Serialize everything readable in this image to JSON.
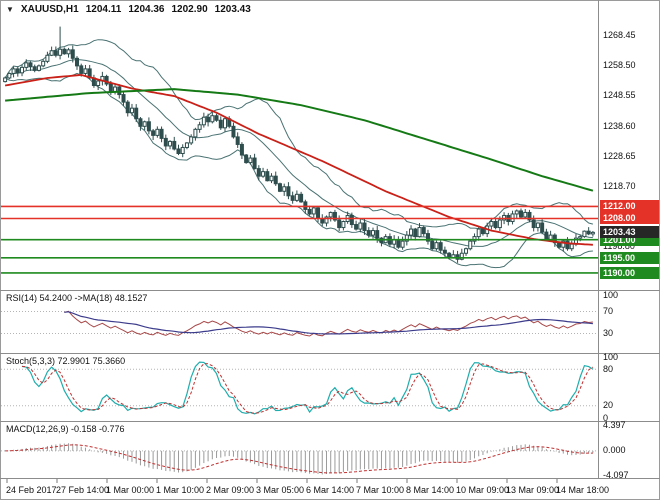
{
  "window": {
    "bg": "#ffffff",
    "border_color": "#9a9a9a"
  },
  "header": {
    "menu_icon": "chart-menu",
    "symbol_period": "XAUUSD,H1",
    "open": "1204.11",
    "high": "1204.36",
    "low": "1202.90",
    "close": "1203.43"
  },
  "chart_data": {
    "type": "candlestick",
    "symbol": "XAUUSD",
    "timeframe": "H1",
    "current_ohlc": {
      "open": 1204.11,
      "high": 1204.36,
      "low": 1202.9,
      "close": 1203.43
    },
    "y_range": [
      1185.0,
      1275.0
    ],
    "y_ticks": [
      {
        "label": "1268.45",
        "price": 1268.45
      },
      {
        "label": "1258.50",
        "price": 1258.5
      },
      {
        "label": "1248.55",
        "price": 1248.55
      },
      {
        "label": "1238.60",
        "price": 1238.6
      },
      {
        "label": "1228.65",
        "price": 1228.65
      },
      {
        "label": "1218.70",
        "price": 1218.7
      },
      {
        "label": "1198.80",
        "price": 1198.8
      }
    ],
    "levels": [
      {
        "label": "1212.00",
        "price": 1212.0,
        "kind": "resistance",
        "color": "#e53228",
        "line": true
      },
      {
        "label": "1208.00",
        "price": 1208.0,
        "kind": "resistance",
        "color": "#e53228",
        "line": true
      },
      {
        "label": "1203.43",
        "price": 1203.43,
        "kind": "current",
        "color": "#262626",
        "line": false
      },
      {
        "label": "1201.00",
        "price": 1201.0,
        "kind": "support",
        "color": "#1f8a1f",
        "line": true
      },
      {
        "label": "1195.00",
        "price": 1195.0,
        "kind": "support",
        "color": "#1f8a1f",
        "line": true
      },
      {
        "label": "1190.00",
        "price": 1190.0,
        "kind": "support",
        "color": "#1f8a1f",
        "line": true
      }
    ],
    "x_labels": [
      "24 Feb 2017",
      "27 Feb 14:00",
      "1 Mar 00:00",
      "1 Mar 10:00",
      "2 Mar 09:00",
      "3 Mar 05:00",
      "6 Mar 14:00",
      "7 Mar 10:00",
      "8 Mar 14:00",
      "10 Mar 09:00",
      "13 Mar 09:00",
      "14 Mar 18:00"
    ],
    "closes": [
      1254.5,
      1256.0,
      1257.5,
      1256.2,
      1258.0,
      1259.5,
      1258.2,
      1257.0,
      1258.5,
      1260.0,
      1262.0,
      1263.5,
      1262.0,
      1264.0,
      1262.5,
      1263.8,
      1261.0,
      1258.5,
      1256.0,
      1257.5,
      1254.5,
      1252.0,
      1253.5,
      1255.0,
      1252.5,
      1250.0,
      1251.5,
      1249.0,
      1246.5,
      1243.0,
      1244.5,
      1241.0,
      1238.5,
      1240.0,
      1237.0,
      1235.5,
      1237.5,
      1234.5,
      1232.0,
      1233.5,
      1231.0,
      1229.5,
      1231.5,
      1233.0,
      1235.0,
      1237.5,
      1239.0,
      1241.5,
      1240.0,
      1242.0,
      1240.5,
      1238.0,
      1241.0,
      1238.5,
      1235.0,
      1232.5,
      1229.0,
      1226.5,
      1228.0,
      1224.5,
      1222.0,
      1223.5,
      1220.5,
      1222.0,
      1219.5,
      1217.0,
      1218.5,
      1215.5,
      1214.0,
      1216.0,
      1213.5,
      1211.0,
      1209.5,
      1211.5,
      1208.0,
      1206.5,
      1208.5,
      1210.0,
      1207.5,
      1205.0,
      1207.0,
      1209.0,
      1206.0,
      1204.5,
      1206.5,
      1204.0,
      1202.5,
      1204.0,
      1201.5,
      1200.0,
      1202.0,
      1199.5,
      1201.0,
      1198.5,
      1200.5,
      1202.5,
      1204.5,
      1202.0,
      1205.0,
      1203.0,
      1200.5,
      1198.0,
      1200.0,
      1197.5,
      1196.5,
      1195.0,
      1196.0,
      1194.5,
      1196.5,
      1198.0,
      1200.5,
      1202.0,
      1204.5,
      1203.0,
      1205.5,
      1207.0,
      1205.0,
      1207.5,
      1209.0,
      1207.0,
      1209.5,
      1210.5,
      1208.5,
      1210.0,
      1207.5,
      1205.0,
      1206.5,
      1203.5,
      1201.0,
      1202.5,
      1200.0,
      1198.5,
      1200.5,
      1198.0,
      1199.5,
      1201.5,
      1202.0,
      1203.8,
      1202.9,
      1203.4
    ],
    "wick_spike": {
      "index": 13,
      "high": 1271.5
    },
    "overlays": {
      "candle_color": "#2e4d4d",
      "bollinger": {
        "period": 14,
        "deviation": 2,
        "color": "#4a7272"
      },
      "ma_fast": {
        "color": "#c92018",
        "anchors": [
          [
            0,
            1252.0
          ],
          [
            10,
            1254.5
          ],
          [
            18,
            1255.5
          ],
          [
            30,
            1251.0
          ],
          [
            40,
            1248.5
          ],
          [
            50,
            1243.0
          ],
          [
            60,
            1236.0
          ],
          [
            75,
            1227.0
          ],
          [
            90,
            1217.0
          ],
          [
            105,
            1208.5
          ],
          [
            115,
            1204.0
          ],
          [
            125,
            1201.2
          ],
          [
            133,
            1199.8
          ],
          [
            139,
            1199.3
          ]
        ]
      },
      "ma_slow": {
        "color": "#157a15",
        "anchors": [
          [
            0,
            1247.0
          ],
          [
            20,
            1249.5
          ],
          [
            40,
            1250.8
          ],
          [
            55,
            1249.0
          ],
          [
            70,
            1245.5
          ],
          [
            85,
            1240.5
          ],
          [
            100,
            1234.0
          ],
          [
            115,
            1227.5
          ],
          [
            127,
            1222.0
          ],
          [
            139,
            1217.2
          ]
        ]
      }
    },
    "indicators": [
      {
        "id": "rsi",
        "label": "RSI(14) 54.2400 ->MA(18) 48.1527",
        "range": [
          0,
          100
        ],
        "levels": [
          70,
          30
        ],
        "scale_labels": [
          {
            "v": 100,
            "t": "100"
          },
          {
            "v": 70,
            "t": "70"
          },
          {
            "v": 30,
            "t": "30"
          }
        ],
        "line_color": "#a84848",
        "ma_color": "#3c3c8c"
      },
      {
        "id": "stoch",
        "label": "Stoch(5,3,3) 72.9901 75.3660",
        "range": [
          0,
          100
        ],
        "levels": [
          80,
          20
        ],
        "scale_labels": [
          {
            "v": 100,
            "t": "100"
          },
          {
            "v": 80,
            "t": "80"
          },
          {
            "v": 20,
            "t": "20"
          },
          {
            "v": 0,
            "t": "0"
          }
        ],
        "main_color": "#1fadad",
        "signal_color": "#c03030"
      },
      {
        "id": "macd",
        "label": "MACD(12,26,9) -0.158 -0.776",
        "range": [
          -4.097,
          4.397
        ],
        "levels": [
          0
        ],
        "scale_labels": [
          {
            "v": 4.397,
            "t": "4.397"
          },
          {
            "v": 0,
            "t": "0.000"
          },
          {
            "v": -4.097,
            "t": "-4.097"
          }
        ],
        "hist_color": "#9a9a9a",
        "signal_color": "#c03030"
      }
    ]
  }
}
